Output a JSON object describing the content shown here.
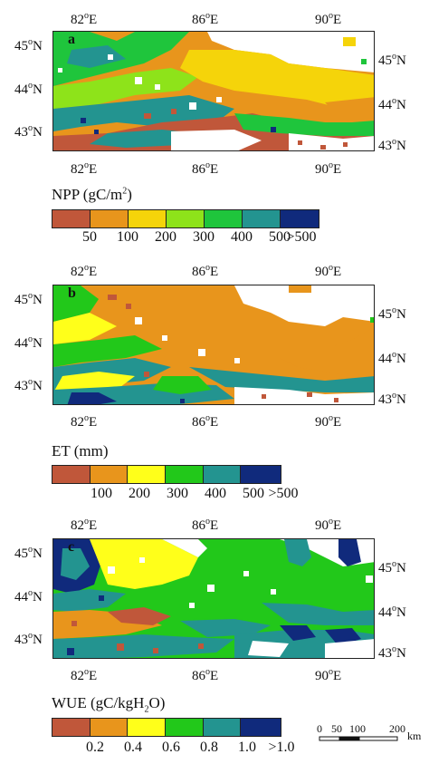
{
  "lon_ticks": [
    "82",
    "86",
    "90"
  ],
  "lat_ticks": [
    "45",
    "44",
    "43"
  ],
  "deg": "o",
  "east": "E",
  "north": "N",
  "panels": [
    {
      "letter": "a",
      "legend_title": "NPP (gC/m",
      "legend_title_sup": "2",
      "legend_title_end": ")",
      "legend_ticks": [
        "50",
        "100",
        "200",
        "300",
        "400",
        "500",
        ">500"
      ],
      "colors": [
        "#c0573a",
        "#e8951c",
        "#f5d40a",
        "#8ee31a",
        "#1fc53c",
        "#239490",
        "#102a7c"
      ]
    },
    {
      "letter": "b",
      "legend_title": "ET (mm)",
      "legend_title_sup": "",
      "legend_title_end": "",
      "legend_ticks": [
        "100",
        "200",
        "300",
        "400",
        "500",
        ">500"
      ],
      "colors": [
        "#c0573a",
        "#e8951c",
        "#ffff1a",
        "#22c81a",
        "#239490",
        "#102a7c"
      ]
    },
    {
      "letter": "c",
      "legend_title": "WUE (gC/kgH",
      "legend_title_sub": "2",
      "legend_title_end": "O)",
      "legend_ticks": [
        "0.2",
        "0.4",
        "0.6",
        "0.8",
        "1.0",
        ">1.0"
      ],
      "colors": [
        "#c0573a",
        "#e8951c",
        "#ffff1a",
        "#22c81a",
        "#239490",
        "#102a7c"
      ]
    }
  ],
  "scale_bar": {
    "labels": [
      "0",
      "50",
      "100",
      "200"
    ],
    "unit": "km"
  }
}
